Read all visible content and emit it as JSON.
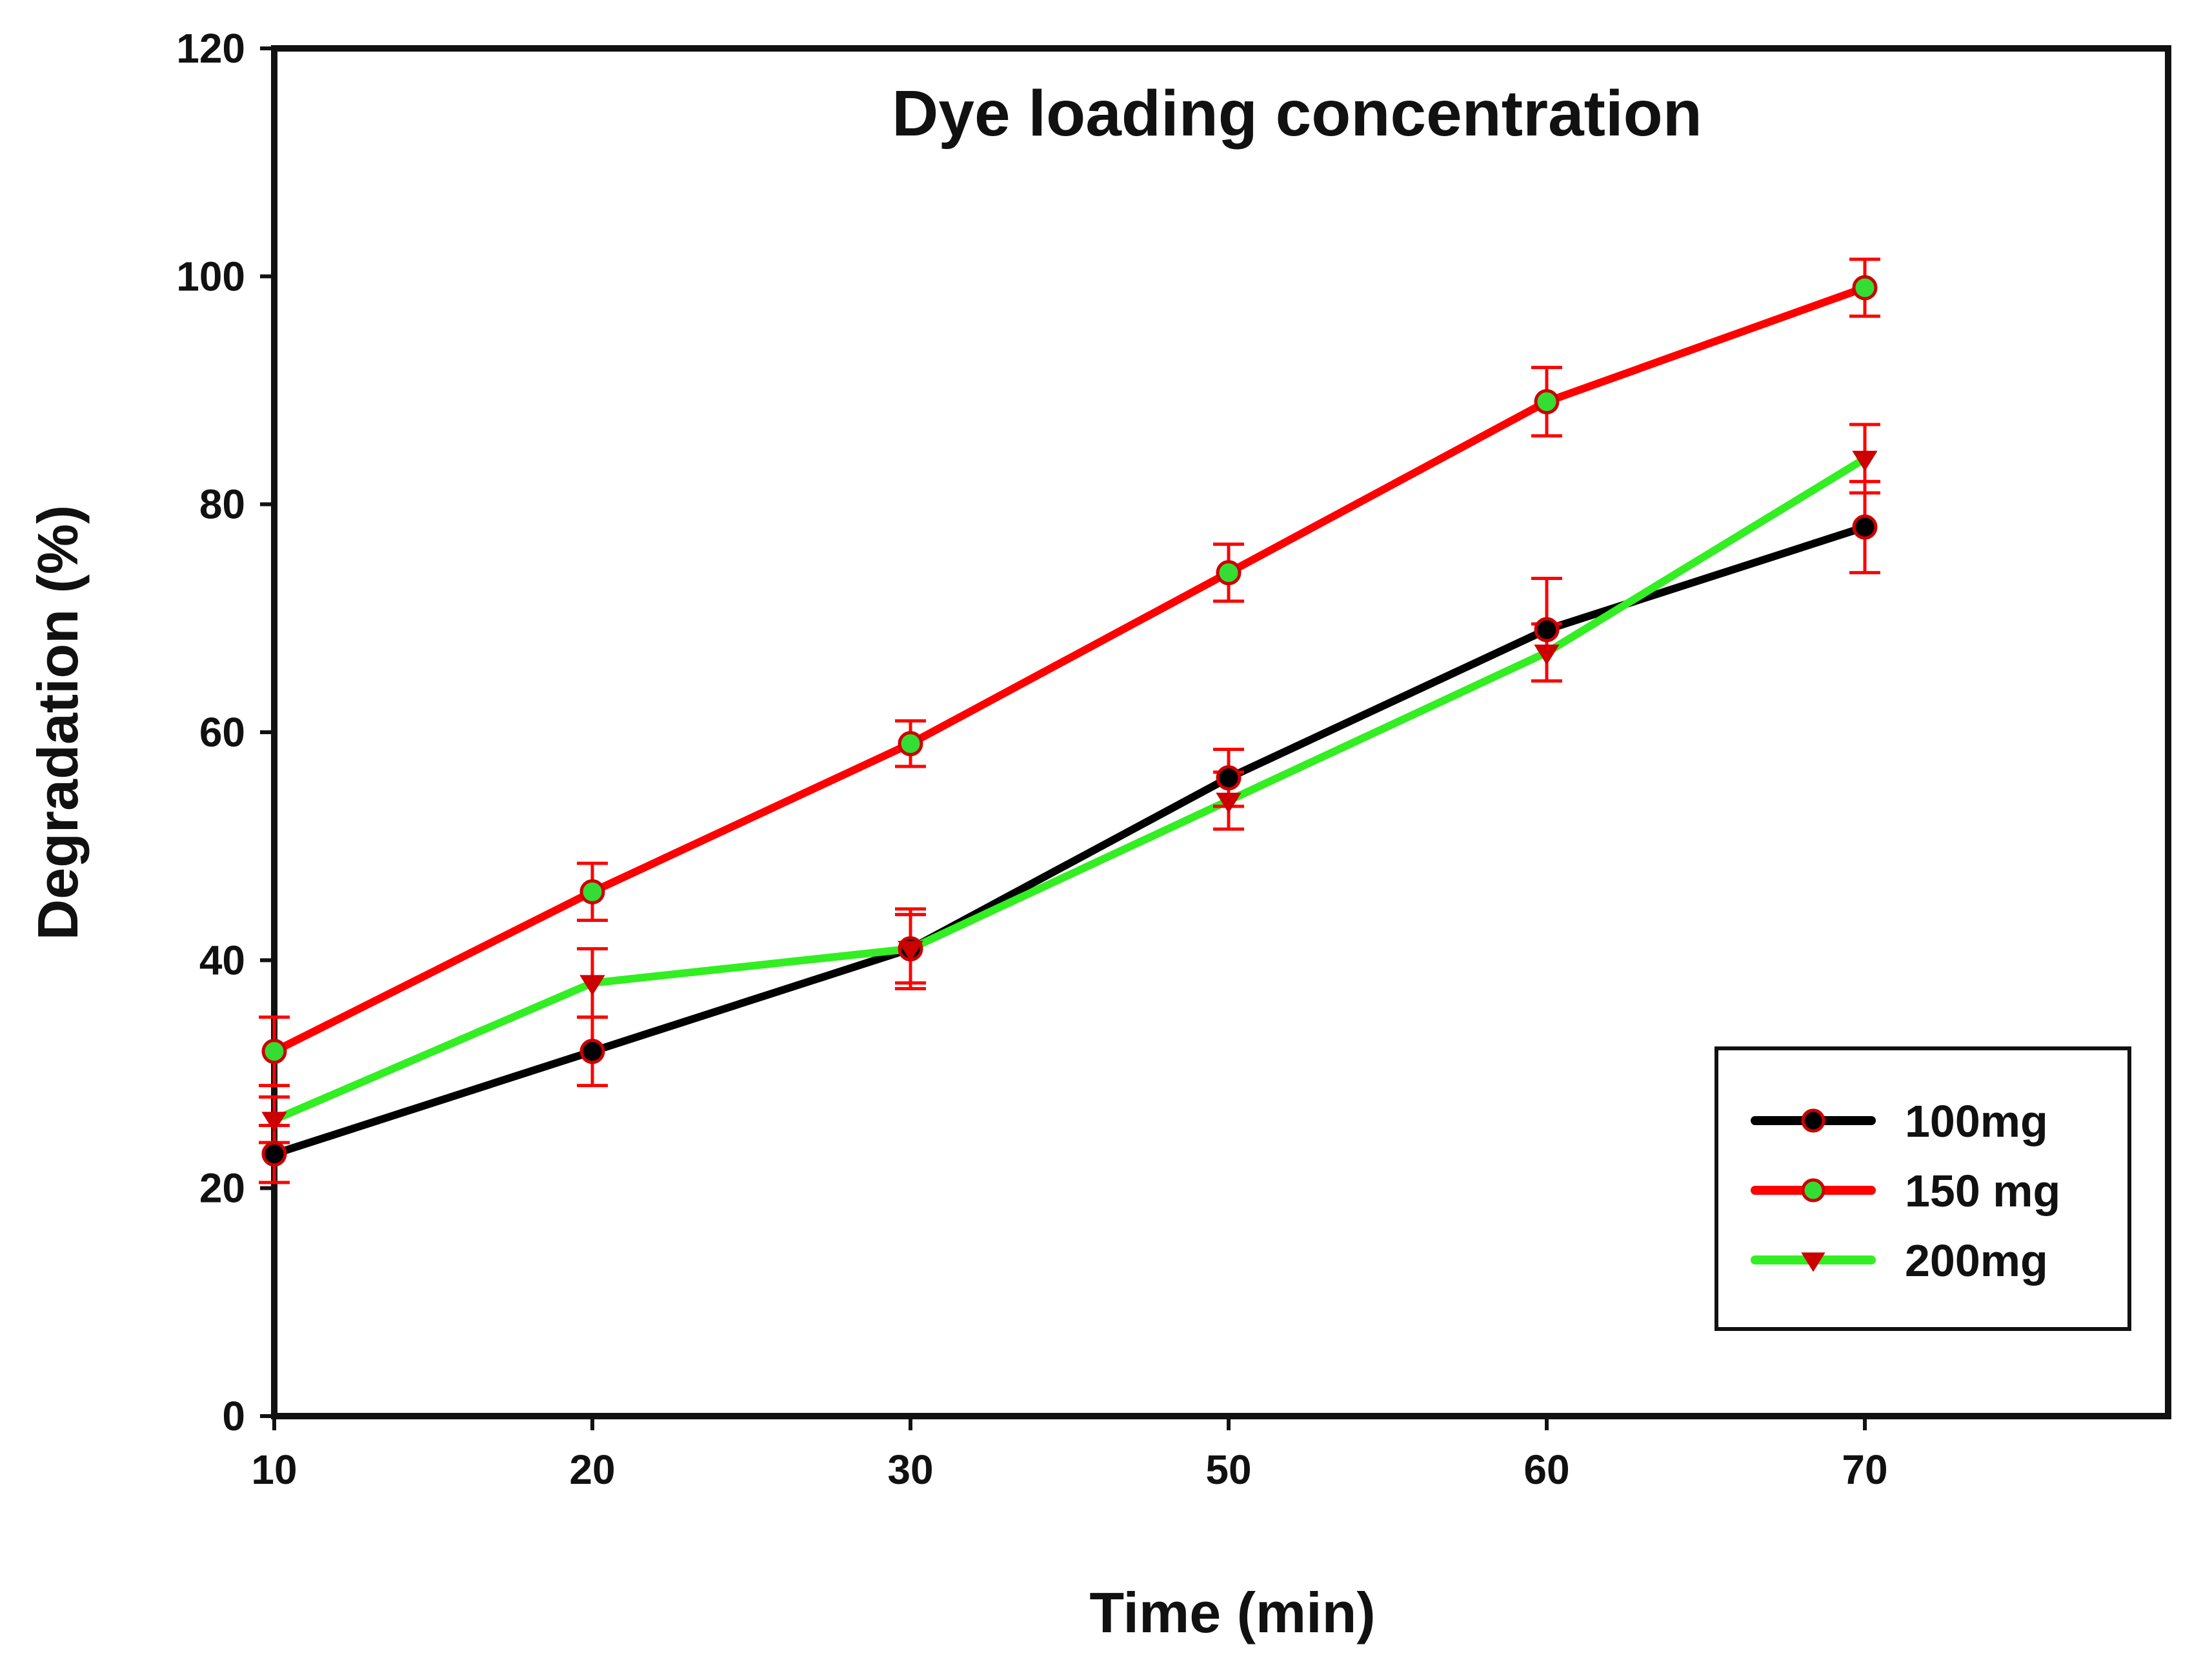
{
  "chart_data": {
    "type": "line",
    "title": "Dye loading concentration",
    "xlabel": "Time (min)",
    "ylabel": "Degradation (%)",
    "categories": [
      "10",
      "20",
      "30",
      "50",
      "60",
      "70"
    ],
    "ylim": [
      0,
      120
    ],
    "yticks": [
      "0",
      "20",
      "40",
      "60",
      "80",
      "100",
      "120"
    ],
    "grid": false,
    "legend_position": "bottom-right",
    "series": [
      {
        "name": "100mg",
        "color": "#000000",
        "marker": "circle",
        "marker_color": "#000000",
        "marker_edge": "#cc0000",
        "values": [
          23,
          32,
          41,
          56,
          69,
          78
        ],
        "errors": [
          2.5,
          3,
          3.5,
          2.5,
          4.5,
          4
        ]
      },
      {
        "name": "150 mg",
        "color": "#ff0000",
        "marker": "circle",
        "marker_color": "#33dd33",
        "marker_edge": "#cc0000",
        "values": [
          32,
          46,
          59,
          74,
          89,
          99
        ],
        "errors": [
          3,
          2.5,
          2,
          2.5,
          3,
          2.5
        ]
      },
      {
        "name": "200mg",
        "color": "#33ee22",
        "marker": "triangle-down",
        "marker_color": "#cc0000",
        "marker_edge": "#cc0000",
        "values": [
          26,
          38,
          41,
          54,
          67,
          84
        ],
        "errors": [
          2,
          3,
          3,
          2.5,
          2.5,
          3
        ]
      }
    ],
    "errorbar_color": "#ff0000"
  }
}
